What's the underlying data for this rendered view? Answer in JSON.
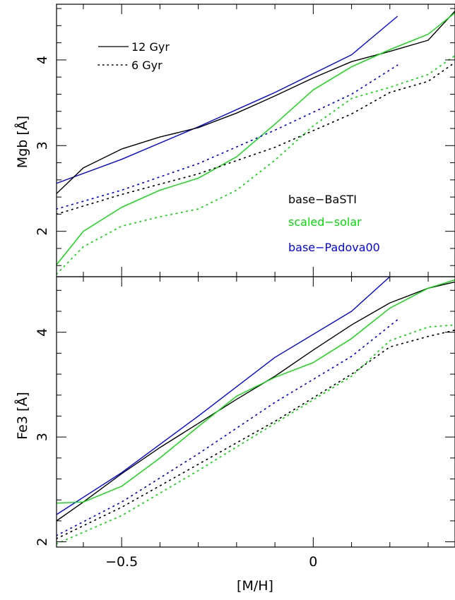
{
  "chart_data": {
    "type": "line",
    "xlabel": "[M/H]",
    "x_ticks": [
      -0.5,
      0
    ],
    "x_tick_labels": [
      "−0.5",
      "0"
    ],
    "xlim": [
      -0.67,
      0.37
    ],
    "legend_linestyles": [
      {
        "label": "12 Gyr",
        "style": "solid"
      },
      {
        "label": "6 Gyr",
        "style": "dotted"
      }
    ],
    "model_labels": [
      {
        "label": "base−BaSTI",
        "color": "#000000"
      },
      {
        "label": "scaled−solar",
        "color": "#00e000"
      },
      {
        "label": "base−Padova00",
        "color": "#0000ff"
      }
    ],
    "panels": [
      {
        "id": "mgb",
        "ylabel": "Mgb [Å]",
        "ylim": [
          1.47,
          4.65
        ],
        "y_ticks": [
          2,
          3,
          4
        ],
        "series": [
          {
            "model": "base-Padova00",
            "age": "12 Gyr",
            "style": "solid",
            "color": "#0000ff",
            "points": [
              [
                -0.67,
                2.56
              ],
              [
                -0.5,
                2.84
              ],
              [
                -0.3,
                3.22
              ],
              [
                -0.1,
                3.62
              ],
              [
                0.1,
                4.06
              ],
              [
                0.22,
                4.51
              ]
            ]
          },
          {
            "model": "base-BaSTI",
            "age": "12 Gyr",
            "style": "solid",
            "color": "#000000",
            "points": [
              [
                -0.67,
                2.44
              ],
              [
                -0.6,
                2.74
              ],
              [
                -0.5,
                2.96
              ],
              [
                -0.4,
                3.1
              ],
              [
                -0.3,
                3.21
              ],
              [
                -0.2,
                3.38
              ],
              [
                -0.1,
                3.58
              ],
              [
                0.0,
                3.79
              ],
              [
                0.1,
                3.98
              ],
              [
                0.2,
                4.1
              ],
              [
                0.3,
                4.23
              ],
              [
                0.37,
                4.57
              ]
            ]
          },
          {
            "model": "scaled-solar",
            "age": "12 Gyr",
            "style": "solid",
            "color": "#00e000",
            "points": [
              [
                -0.67,
                1.61
              ],
              [
                -0.6,
                2.0
              ],
              [
                -0.5,
                2.28
              ],
              [
                -0.4,
                2.48
              ],
              [
                -0.3,
                2.62
              ],
              [
                -0.2,
                2.87
              ],
              [
                -0.1,
                3.25
              ],
              [
                0.0,
                3.65
              ],
              [
                0.1,
                3.92
              ],
              [
                0.2,
                4.12
              ],
              [
                0.3,
                4.3
              ],
              [
                0.37,
                4.55
              ]
            ]
          },
          {
            "model": "base-Padova00",
            "age": "6 Gyr",
            "style": "dotted",
            "color": "#0000ff",
            "points": [
              [
                -0.67,
                2.26
              ],
              [
                -0.5,
                2.48
              ],
              [
                -0.3,
                2.79
              ],
              [
                -0.1,
                3.18
              ],
              [
                0.1,
                3.6
              ],
              [
                0.22,
                3.94
              ]
            ]
          },
          {
            "model": "base-BaSTI",
            "age": "6 Gyr",
            "style": "dotted",
            "color": "#000000",
            "points": [
              [
                -0.67,
                2.2
              ],
              [
                -0.5,
                2.43
              ],
              [
                -0.3,
                2.67
              ],
              [
                -0.1,
                2.98
              ],
              [
                0.1,
                3.37
              ],
              [
                0.2,
                3.62
              ],
              [
                0.3,
                3.75
              ],
              [
                0.37,
                3.97
              ]
            ]
          },
          {
            "model": "scaled-solar",
            "age": "6 Gyr",
            "style": "dotted",
            "color": "#00e000",
            "points": [
              [
                -0.67,
                1.5
              ],
              [
                -0.6,
                1.82
              ],
              [
                -0.5,
                2.06
              ],
              [
                -0.4,
                2.17
              ],
              [
                -0.3,
                2.26
              ],
              [
                -0.2,
                2.48
              ],
              [
                -0.1,
                2.83
              ],
              [
                0.0,
                3.23
              ],
              [
                0.1,
                3.55
              ],
              [
                0.2,
                3.68
              ],
              [
                0.3,
                3.83
              ],
              [
                0.37,
                4.05
              ]
            ]
          }
        ]
      },
      {
        "id": "fe3",
        "ylabel": "Fe3 [Å]",
        "ylim": [
          1.95,
          4.53
        ],
        "y_ticks": [
          2,
          3,
          4
        ],
        "series": [
          {
            "model": "base-Padova00",
            "age": "12 Gyr",
            "style": "solid",
            "color": "#0000ff",
            "points": [
              [
                -0.67,
                2.26
              ],
              [
                -0.5,
                2.66
              ],
              [
                -0.3,
                3.2
              ],
              [
                -0.1,
                3.76
              ],
              [
                0.1,
                4.2
              ],
              [
                0.2,
                4.53
              ]
            ]
          },
          {
            "model": "base-BaSTI",
            "age": "12 Gyr",
            "style": "solid",
            "color": "#000000",
            "points": [
              [
                -0.67,
                2.2
              ],
              [
                -0.6,
                2.38
              ],
              [
                -0.5,
                2.65
              ],
              [
                -0.4,
                2.9
              ],
              [
                -0.3,
                3.13
              ],
              [
                -0.2,
                3.36
              ],
              [
                -0.1,
                3.58
              ],
              [
                0.0,
                3.83
              ],
              [
                0.1,
                4.07
              ],
              [
                0.2,
                4.28
              ],
              [
                0.3,
                4.42
              ],
              [
                0.37,
                4.48
              ]
            ]
          },
          {
            "model": "scaled-solar",
            "age": "12 Gyr",
            "style": "solid",
            "color": "#00e000",
            "points": [
              [
                -0.67,
                2.37
              ],
              [
                -0.6,
                2.38
              ],
              [
                -0.5,
                2.53
              ],
              [
                -0.4,
                2.8
              ],
              [
                -0.3,
                3.1
              ],
              [
                -0.2,
                3.39
              ],
              [
                -0.1,
                3.57
              ],
              [
                0.0,
                3.71
              ],
              [
                0.1,
                3.94
              ],
              [
                0.2,
                4.23
              ],
              [
                0.3,
                4.42
              ],
              [
                0.37,
                4.5
              ]
            ]
          },
          {
            "model": "base-Padova00",
            "age": "6 Gyr",
            "style": "dotted",
            "color": "#0000ff",
            "points": [
              [
                -0.67,
                2.06
              ],
              [
                -0.5,
                2.38
              ],
              [
                -0.3,
                2.84
              ],
              [
                -0.1,
                3.33
              ],
              [
                0.1,
                3.77
              ],
              [
                0.22,
                4.12
              ]
            ]
          },
          {
            "model": "base-BaSTI",
            "age": "6 Gyr",
            "style": "dotted",
            "color": "#000000",
            "points": [
              [
                -0.67,
                2.03
              ],
              [
                -0.5,
                2.33
              ],
              [
                -0.3,
                2.74
              ],
              [
                -0.1,
                3.15
              ],
              [
                0.1,
                3.6
              ],
              [
                0.2,
                3.86
              ],
              [
                0.3,
                3.96
              ],
              [
                0.37,
                4.02
              ]
            ]
          },
          {
            "model": "scaled-solar",
            "age": "6 Gyr",
            "style": "dotted",
            "color": "#00e000",
            "points": [
              [
                -0.67,
                1.98
              ],
              [
                -0.5,
                2.25
              ],
              [
                -0.3,
                2.68
              ],
              [
                -0.1,
                3.13
              ],
              [
                0.1,
                3.58
              ],
              [
                0.2,
                3.92
              ],
              [
                0.3,
                4.05
              ],
              [
                0.37,
                4.07
              ]
            ]
          }
        ]
      }
    ]
  }
}
